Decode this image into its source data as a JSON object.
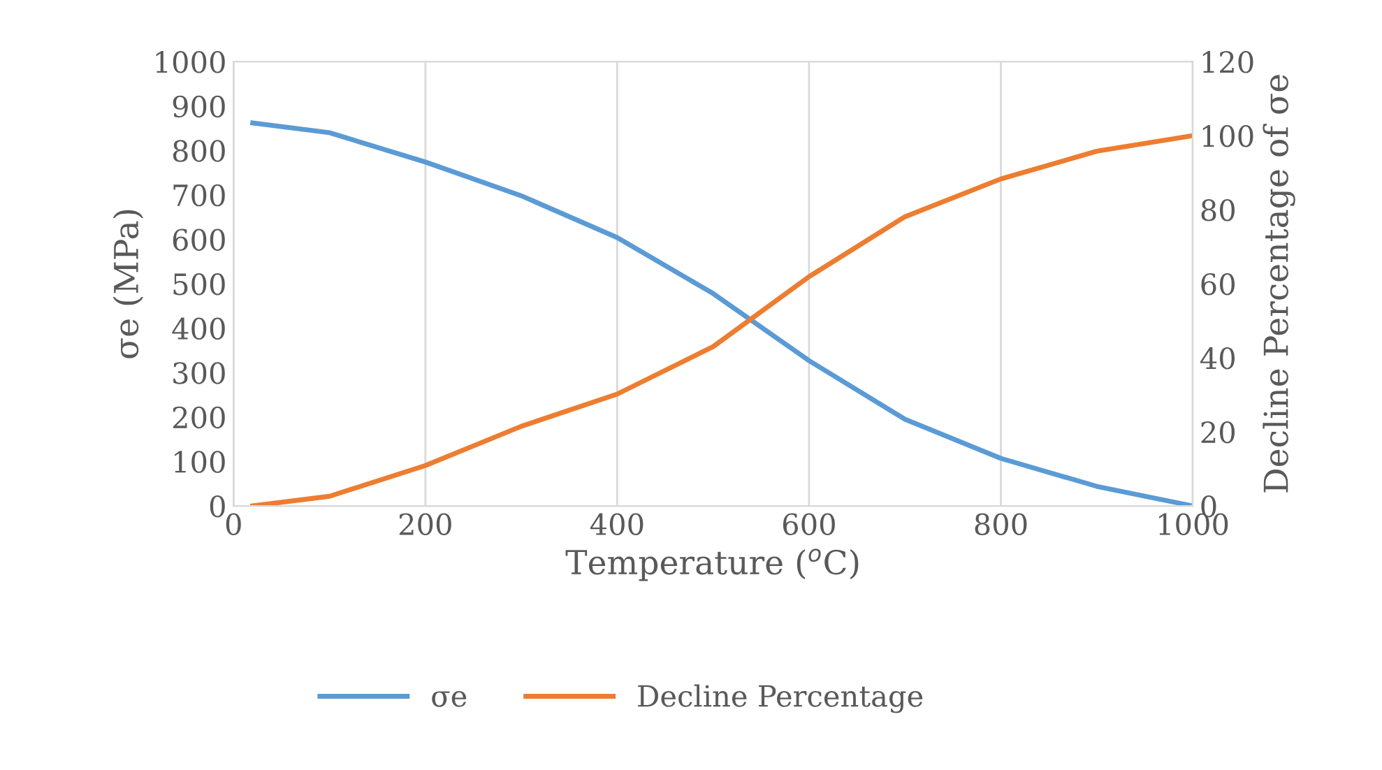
{
  "chart_data": {
    "type": "line",
    "xlabel": "Temperature ($^{o}$C)",
    "ylabel": "σe (MPa)",
    "y2label": "Decline Percentage of σe",
    "x": [
      20,
      100,
      200,
      300,
      400,
      500,
      600,
      700,
      800,
      900,
      1000
    ],
    "series": [
      {
        "name": "σe",
        "color": "#5b9bd5",
        "values": [
          862,
          840,
          774,
          698,
          604,
          478,
          327,
          195,
          107,
          44,
          0
        ]
      },
      {
        "name": "Decline Percentage",
        "color": "#ed7d31",
        "axis": "y2",
        "values": [
          0,
          2.6,
          10.9,
          21.5,
          30.2,
          43,
          61.9,
          78.1,
          88.3,
          95.8,
          100
        ]
      }
    ],
    "xlim": [
      0,
      1000
    ],
    "xticks": [
      0,
      200,
      400,
      600,
      800,
      1000
    ],
    "ylim": [
      0,
      1000
    ],
    "yticks": [
      0,
      100,
      200,
      300,
      400,
      500,
      600,
      700,
      800,
      900,
      1000
    ],
    "y2lim": [
      0,
      120
    ],
    "y2ticks": [
      0,
      20,
      40,
      60,
      80,
      100,
      120
    ],
    "grid": "x",
    "legend": "bottom",
    "marker": "none",
    "line_style": "solid"
  }
}
